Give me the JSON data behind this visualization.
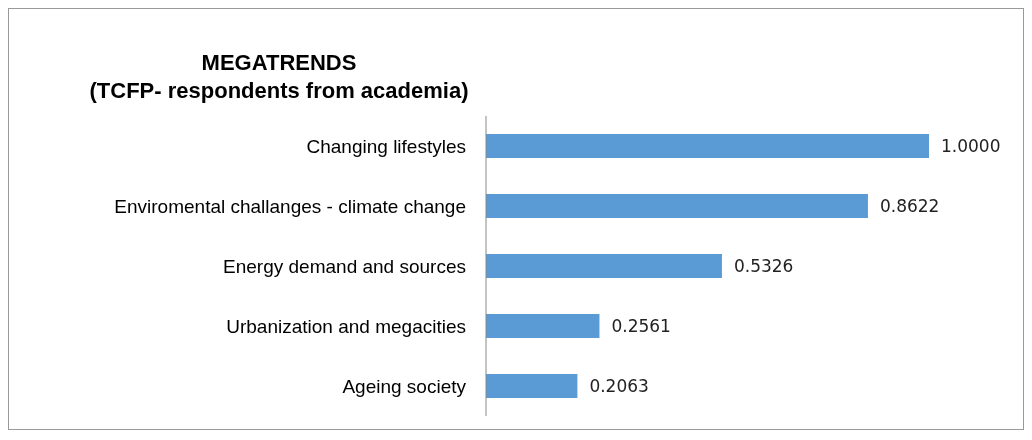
{
  "chart_data": {
    "type": "bar",
    "orientation": "horizontal",
    "title": "MEGATRENDS\n(TCFP- respondents from academia)",
    "categories": [
      "Changing lifestyles",
      "Enviromental challanges - climate change",
      "Energy demand and sources",
      "Urbanization and megacities",
      "Ageing society"
    ],
    "values": [
      1.0,
      0.8622,
      0.5326,
      0.2561,
      0.2063
    ],
    "value_labels": [
      "1.0000",
      "0.8622",
      "0.5326",
      "0.2561",
      "0.2063"
    ],
    "color": "#5b9bd5",
    "grid": false,
    "legend": false
  }
}
